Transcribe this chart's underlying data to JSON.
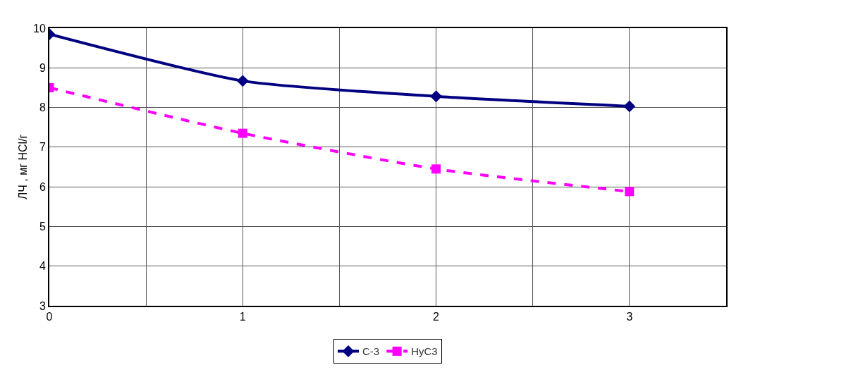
{
  "chart_data": {
    "type": "line",
    "ylabel": "ЛЧ , мг HCl/г",
    "x": [
      0,
      1,
      2,
      3
    ],
    "xlim": [
      0,
      3.5
    ],
    "xticks": [
      0,
      {
        "value": 0.5,
        "label": null
      },
      1,
      {
        "value": 1.5,
        "label": null
      },
      2,
      {
        "value": 2.5,
        "label": null
      },
      3,
      {
        "value": 3.5,
        "label": null
      }
    ],
    "ylim": [
      3,
      10
    ],
    "yticks": [
      3,
      4,
      5,
      6,
      7,
      8,
      9,
      10
    ],
    "grid": true,
    "legend": "bottom",
    "series": [
      {
        "name": "С-3",
        "color": "#000080",
        "values": [
          9.85,
          8.67,
          8.28,
          8.03
        ],
        "marker": "diamond",
        "line_style": "solid"
      },
      {
        "name": "НуС3",
        "color": "#ff00ff",
        "values": [
          8.5,
          7.35,
          6.45,
          5.88
        ],
        "marker": "square",
        "line_style": "dashed"
      }
    ]
  }
}
